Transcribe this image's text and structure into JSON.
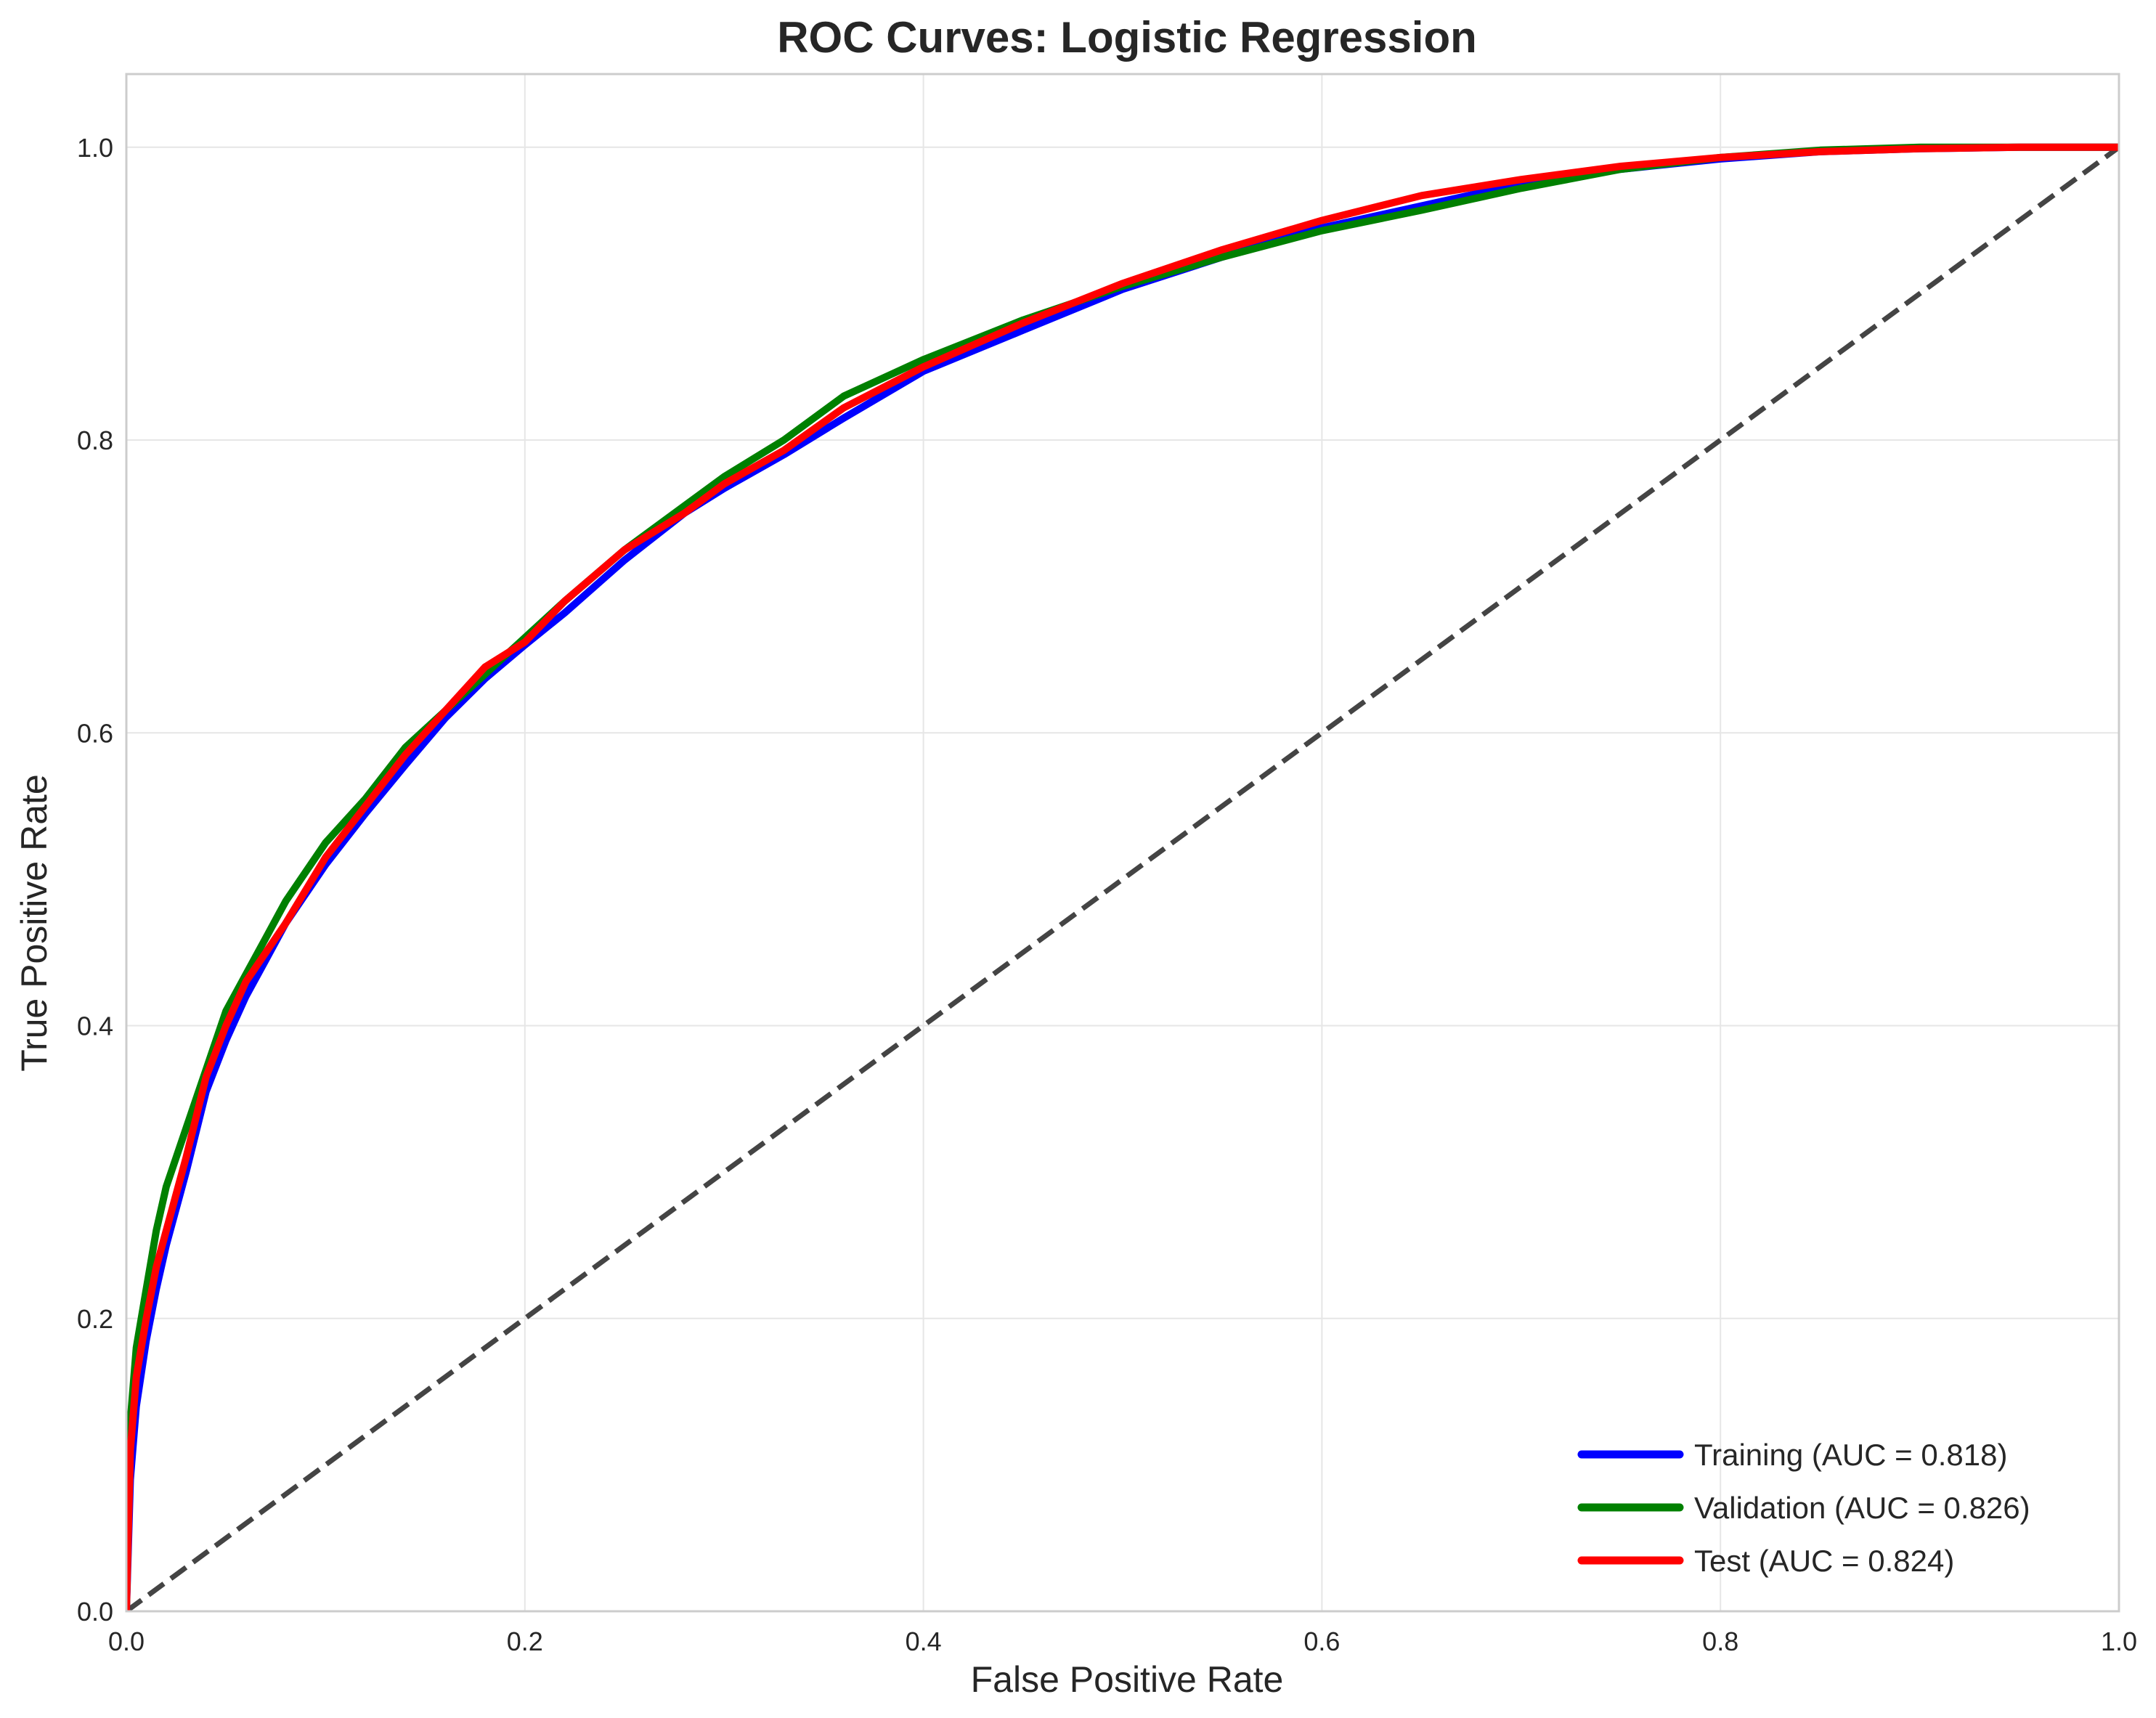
{
  "chart_data": {
    "type": "line",
    "title": "ROC Curves: Logistic Regression",
    "xlabel": "False Positive Rate",
    "ylabel": "True Positive Rate",
    "xlim": [
      0.0,
      1.0
    ],
    "ylim": [
      0.0,
      1.05
    ],
    "xticks": [
      0.0,
      0.2,
      0.4,
      0.6,
      0.8,
      1.0
    ],
    "yticks": [
      0.0,
      0.2,
      0.4,
      0.6,
      0.8,
      1.0
    ],
    "xtick_labels": [
      "0.0",
      "0.2",
      "0.4",
      "0.6",
      "0.8",
      "1.0"
    ],
    "ytick_labels": [
      "0.0",
      "0.2",
      "0.4",
      "0.6",
      "0.8",
      "1.0"
    ],
    "grid": true,
    "legend_position": "lower-right",
    "series": [
      {
        "name": "Training (AUC = 0.818)",
        "color": "#0000ff",
        "x": [
          0.0,
          0.002,
          0.005,
          0.01,
          0.015,
          0.02,
          0.03,
          0.04,
          0.05,
          0.06,
          0.07,
          0.08,
          0.1,
          0.12,
          0.14,
          0.16,
          0.18,
          0.2,
          0.22,
          0.25,
          0.28,
          0.3,
          0.33,
          0.36,
          0.4,
          0.45,
          0.5,
          0.55,
          0.6,
          0.65,
          0.7,
          0.75,
          0.8,
          0.85,
          0.9,
          0.95,
          1.0
        ],
        "y": [
          0.0,
          0.09,
          0.14,
          0.185,
          0.22,
          0.25,
          0.3,
          0.355,
          0.39,
          0.42,
          0.445,
          0.47,
          0.51,
          0.545,
          0.578,
          0.61,
          0.637,
          0.66,
          0.682,
          0.718,
          0.75,
          0.767,
          0.79,
          0.815,
          0.847,
          0.875,
          0.903,
          0.925,
          0.945,
          0.96,
          0.975,
          0.985,
          0.992,
          0.997,
          0.999,
          1.0,
          1.0
        ]
      },
      {
        "name": "Validation (AUC = 0.826)",
        "color": "#008000",
        "x": [
          0.0,
          0.002,
          0.005,
          0.01,
          0.015,
          0.02,
          0.03,
          0.04,
          0.05,
          0.06,
          0.07,
          0.08,
          0.1,
          0.12,
          0.14,
          0.16,
          0.18,
          0.2,
          0.22,
          0.25,
          0.28,
          0.3,
          0.33,
          0.36,
          0.4,
          0.45,
          0.5,
          0.55,
          0.6,
          0.65,
          0.7,
          0.75,
          0.8,
          0.85,
          0.9,
          0.95,
          1.0
        ],
        "y": [
          0.0,
          0.13,
          0.18,
          0.22,
          0.26,
          0.29,
          0.33,
          0.37,
          0.41,
          0.435,
          0.46,
          0.485,
          0.525,
          0.555,
          0.59,
          0.615,
          0.64,
          0.665,
          0.69,
          0.725,
          0.755,
          0.775,
          0.8,
          0.83,
          0.855,
          0.882,
          0.905,
          0.925,
          0.943,
          0.957,
          0.972,
          0.985,
          0.993,
          0.998,
          1.0,
          1.0,
          1.0
        ]
      },
      {
        "name": "Test (AUC = 0.824)",
        "color": "#ff0000",
        "x": [
          0.0,
          0.002,
          0.005,
          0.01,
          0.015,
          0.02,
          0.03,
          0.04,
          0.05,
          0.06,
          0.07,
          0.08,
          0.1,
          0.12,
          0.14,
          0.16,
          0.18,
          0.2,
          0.22,
          0.25,
          0.28,
          0.3,
          0.33,
          0.36,
          0.4,
          0.45,
          0.5,
          0.55,
          0.6,
          0.65,
          0.7,
          0.75,
          0.8,
          0.85,
          0.9,
          0.95,
          1.0
        ],
        "y": [
          0.0,
          0.11,
          0.16,
          0.2,
          0.235,
          0.26,
          0.31,
          0.365,
          0.4,
          0.43,
          0.45,
          0.47,
          0.515,
          0.55,
          0.585,
          0.615,
          0.645,
          0.662,
          0.69,
          0.725,
          0.75,
          0.77,
          0.793,
          0.822,
          0.85,
          0.88,
          0.907,
          0.93,
          0.95,
          0.967,
          0.978,
          0.987,
          0.993,
          0.997,
          0.999,
          1.0,
          1.0
        ]
      },
      {
        "name": "",
        "color": "#444444",
        "style": "dashed",
        "x": [
          0.0,
          1.0
        ],
        "y": [
          0.0,
          1.0
        ]
      }
    ]
  }
}
